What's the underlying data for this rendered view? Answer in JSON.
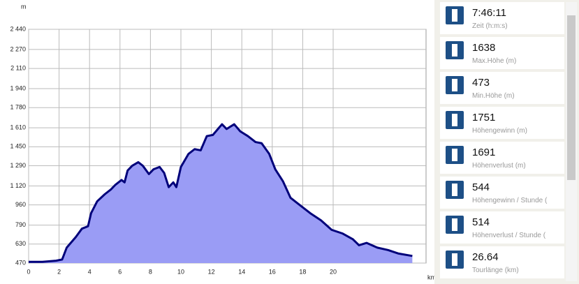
{
  "chart_data": {
    "type": "area",
    "y_unit": "m",
    "x_unit": "km",
    "x": [
      0,
      0.9,
      1.8,
      2.2,
      2.5,
      3.1,
      3.5,
      3.9,
      4.1,
      4.5,
      5.0,
      5.4,
      5.7,
      6.1,
      6.3,
      6.5,
      6.8,
      7.2,
      7.5,
      7.9,
      8.2,
      8.6,
      8.9,
      9.2,
      9.5,
      9.7,
      10.0,
      10.5,
      10.9,
      11.3,
      11.7,
      12.1,
      12.5,
      12.7,
      13.0,
      13.5,
      13.9,
      14.4,
      14.9,
      15.3,
      15.8,
      16.2,
      16.7,
      17.2,
      17.6,
      18.1,
      18.5,
      19.2,
      19.9,
      20.6,
      21.3,
      21.7,
      22.2,
      22.9,
      23.6,
      24.3,
      25.2
    ],
    "values": [
      480,
      480,
      490,
      500,
      600,
      690,
      760,
      780,
      890,
      990,
      1050,
      1090,
      1130,
      1170,
      1150,
      1250,
      1290,
      1320,
      1290,
      1220,
      1260,
      1280,
      1230,
      1110,
      1150,
      1110,
      1280,
      1390,
      1430,
      1420,
      1540,
      1550,
      1610,
      1640,
      1600,
      1640,
      1580,
      1540,
      1490,
      1480,
      1390,
      1260,
      1160,
      1020,
      980,
      930,
      890,
      830,
      750,
      720,
      670,
      620,
      640,
      600,
      580,
      550,
      530
    ],
    "color": "#9a9cf5",
    "line_color": "#00007a",
    "xlim": [
      0,
      26.1
    ],
    "xticks": [
      0,
      2,
      4,
      6,
      8,
      10,
      12,
      14,
      16,
      18,
      20
    ],
    "ylim": [
      470,
      2440
    ],
    "yticks": [
      470,
      630,
      790,
      960,
      {
        "value": 1120,
        "label": "1 120"
      },
      {
        "value": 1290,
        "label": "1 290"
      },
      {
        "value": 1450,
        "label": "1 450"
      },
      {
        "value": 1610,
        "label": "1 610"
      },
      {
        "value": 1780,
        "label": "1 780"
      },
      {
        "value": 1940,
        "label": "1 940"
      },
      {
        "value": 2110,
        "label": "2 110"
      },
      {
        "value": 2270,
        "label": "2 270"
      },
      {
        "value": 2440,
        "label": "2 440"
      }
    ],
    "grid": true
  },
  "stats": [
    {
      "value": "7:46:11",
      "label": "Zeit (h:m:s)"
    },
    {
      "value": "1638",
      "label": "Max.Höhe (m)"
    },
    {
      "value": "473",
      "label": "Min.Höhe (m)"
    },
    {
      "value": "1751",
      "label": "Höhengewinn (m)"
    },
    {
      "value": "1691",
      "label": "Höhenverlust (m)"
    },
    {
      "value": "544",
      "label": "Höhengewinn  /  Stunde ("
    },
    {
      "value": "514",
      "label": "Höhenverlust  /  Stunde ("
    },
    {
      "value": "26.64",
      "label": "Tourlänge (km)"
    }
  ]
}
